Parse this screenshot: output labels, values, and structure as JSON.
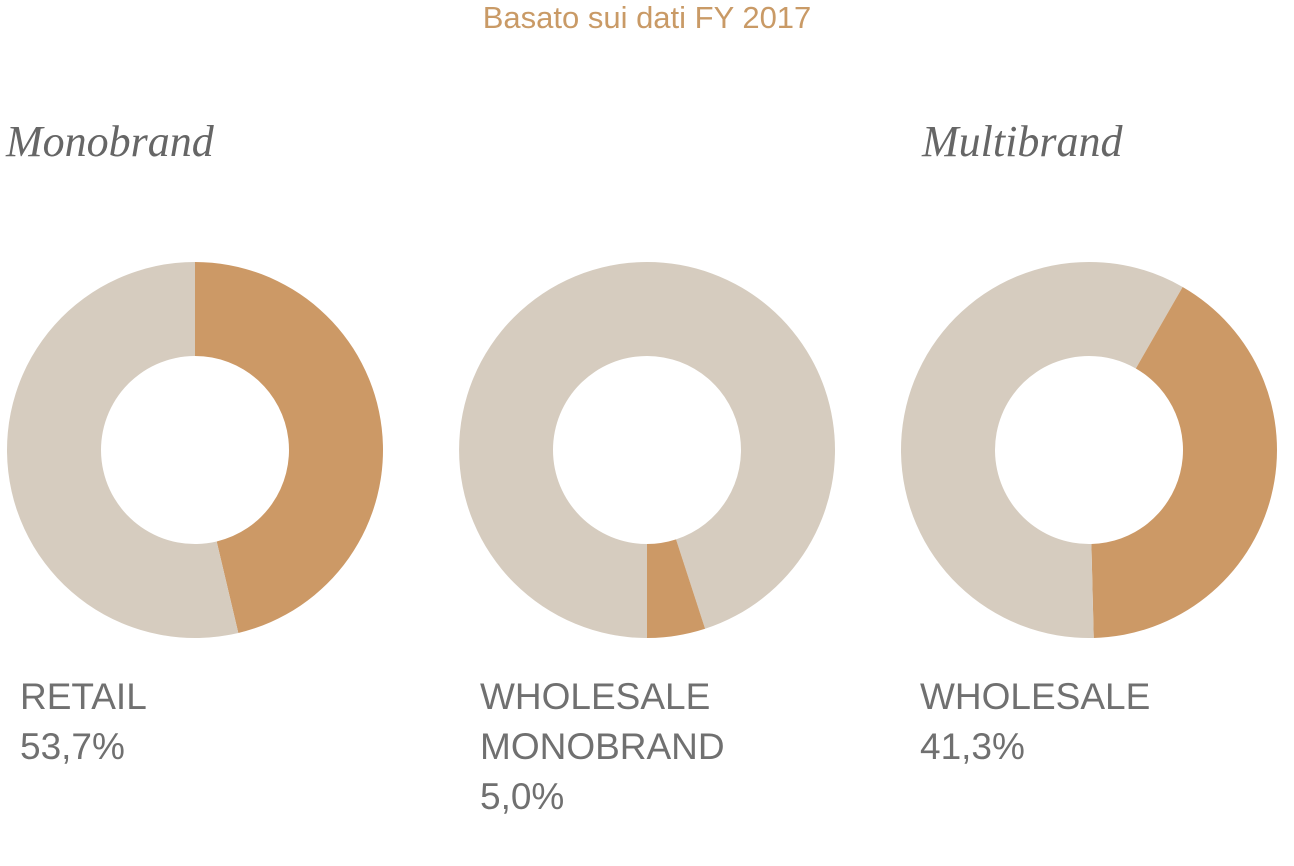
{
  "subtitle": "Basato sui dati FY 2017",
  "chart_data": [
    {
      "type": "donut",
      "title": "Monobrand",
      "values": [
        46.3,
        53.7
      ],
      "colors": [
        "#cc9966",
        "#d6ccbf"
      ],
      "categories": [
        null,
        "RETAIL"
      ],
      "value_labels": [
        null,
        "53,7%"
      ]
    },
    {
      "type": "donut",
      "values": [
        45.0,
        5.0,
        50.0
      ],
      "colors": [
        "#d6ccbf",
        "#cc9966",
        "#d6ccbf"
      ],
      "categories": [
        null,
        "WHOLESALE MONOBRAND",
        null
      ],
      "value_labels": [
        null,
        "5,0%",
        null
      ]
    },
    {
      "type": "donut",
      "title": "Multibrand",
      "values": [
        8.3,
        41.3,
        50.4
      ],
      "colors": [
        "#d6ccbf",
        "#cc9966",
        "#d6ccbf"
      ],
      "categories": [
        null,
        "WHOLESALE",
        null
      ],
      "value_labels": [
        null,
        "41,3%",
        null
      ]
    }
  ]
}
